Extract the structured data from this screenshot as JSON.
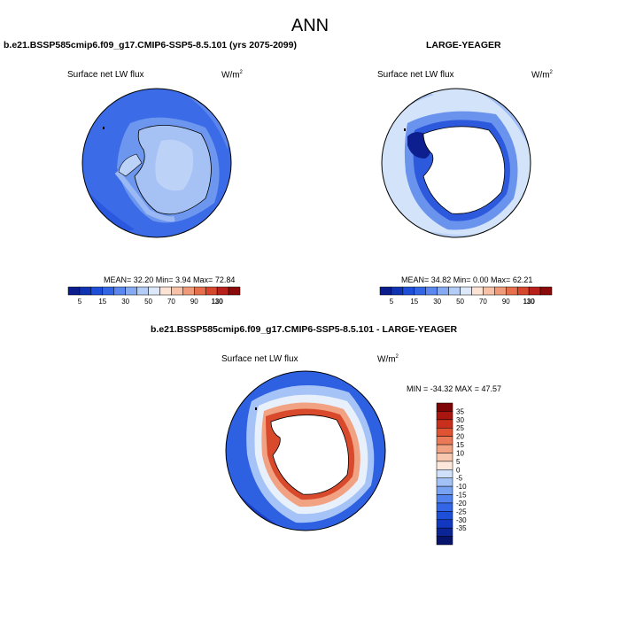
{
  "page": {
    "title": "ANN"
  },
  "colorbar_colors": [
    "#0b1c8c",
    "#0e34b4",
    "#1e4fd8",
    "#3366e6",
    "#5a88ee",
    "#86aaf2",
    "#b4cdf6",
    "#dde9fb",
    "#fbe3d6",
    "#f6c1a6",
    "#ef9a78",
    "#e6704c",
    "#d6472c",
    "#b8211a",
    "#8b0a0a"
  ],
  "diff_colors": [
    "#07146e",
    "#0b2596",
    "#1238c0",
    "#1d4fd8",
    "#3366e6",
    "#5282ee",
    "#78a2f2",
    "#a2c1f6",
    "#cfe0fa",
    "#fde7da",
    "#f8c7b0",
    "#f1a283",
    "#e97957",
    "#df5232",
    "#c8301d",
    "#a8160f",
    "#7d0505"
  ],
  "chart_data": [
    {
      "type": "heatmap",
      "title": "b.e21.BSSP585cmip6.f09_g17.CMIP6-SSP5-8.5.101 (yrs 2075-2099)",
      "variable": "Surface net LW flux",
      "units": "W/m",
      "units_sup": "2",
      "stats": {
        "mean": "32.20",
        "min": "3.94",
        "max": "72.84"
      },
      "stats_text": "MEAN=  32.20  Min=   3.94  Max=  72.84",
      "colorbar_ticks": [
        "5",
        "15",
        "30",
        "50",
        "70",
        "90",
        "110",
        "130"
      ]
    },
    {
      "type": "heatmap",
      "title": "LARGE-YEAGER",
      "variable": "Surface net LW flux",
      "units": "W/m",
      "units_sup": "2",
      "stats": {
        "mean": "34.82",
        "min": "0.00",
        "max": "62.21"
      },
      "stats_text": "MEAN=  34.82  Min=   0.00  Max=  62.21",
      "colorbar_ticks": [
        "5",
        "15",
        "30",
        "50",
        "70",
        "90",
        "110",
        "130"
      ]
    },
    {
      "type": "heatmap",
      "title": "b.e21.BSSP585cmip6.f09_g17.CMIP6-SSP5-8.5.101 - LARGE-YEAGER",
      "variable": "Surface net LW flux",
      "units": "W/m",
      "units_sup": "2",
      "stats": {
        "min": "-34.32",
        "max": "47.57"
      },
      "stats_text": "MIN = -34.32 MAX =  47.57",
      "colorbar_ticks": [
        "35",
        "30",
        "25",
        "20",
        "15",
        "10",
        "5",
        "0",
        "-5",
        "-10",
        "-15",
        "-20",
        "-25",
        "-30",
        "-35"
      ]
    }
  ]
}
